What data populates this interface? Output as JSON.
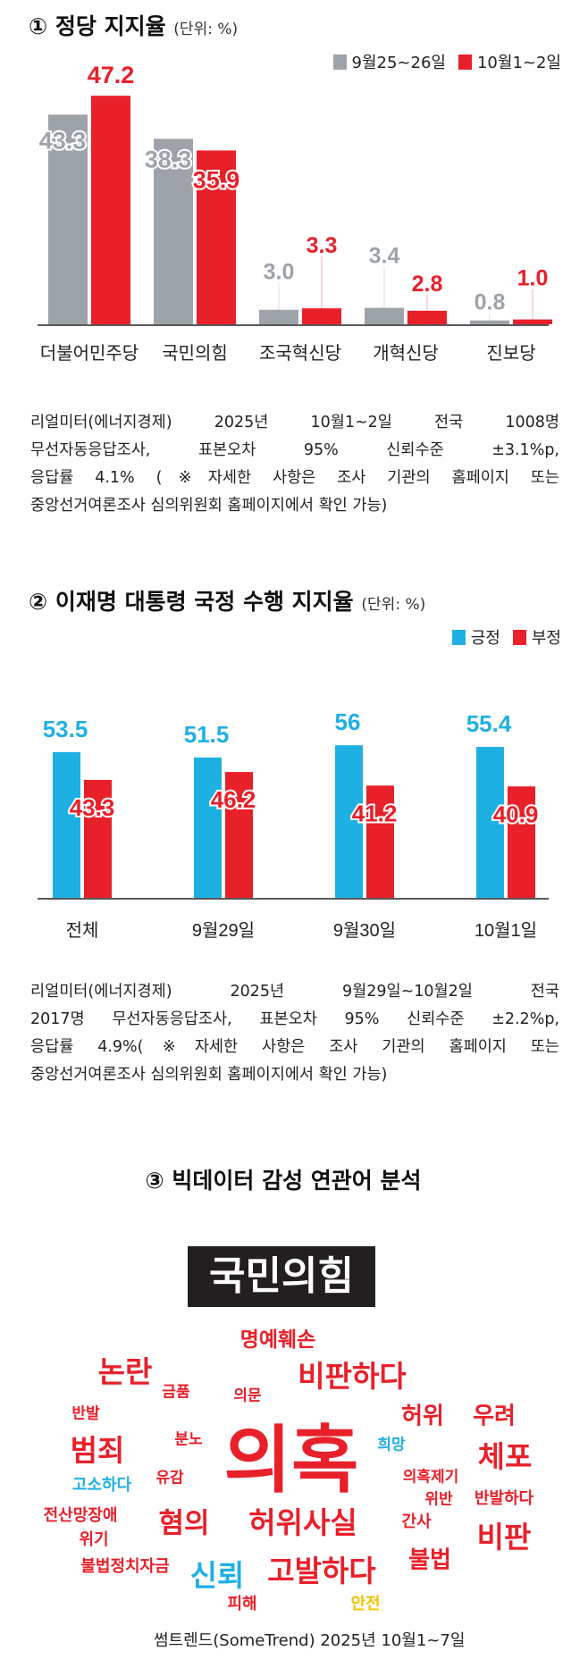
{
  "colors": {
    "gray": "#9ea3aa",
    "red": "#e8202a",
    "blue": "#1fb0e3",
    "yellow": "#f2c200"
  },
  "chart_data": [
    {
      "type": "bar",
      "title": "① 정당 지지율",
      "unit": "(단위: %)",
      "categories": [
        "더불어민주당",
        "국민의힘",
        "조국혁신당",
        "개혁신당",
        "진보당"
      ],
      "series": [
        {
          "name": "9월25~26일",
          "values": [
            43.3,
            38.3,
            3.0,
            3.4,
            0.8
          ],
          "labels": [
            "43.3",
            "38.3",
            "3.0",
            "3.4",
            "0.8"
          ]
        },
        {
          "name": "10월1~2일",
          "values": [
            47.2,
            35.9,
            3.3,
            2.8,
            1.0
          ],
          "labels": [
            "47.2",
            "35.9",
            "3.3",
            "2.8",
            "1.0"
          ]
        }
      ],
      "ylim": [
        0,
        50
      ],
      "legend": "top-right",
      "grid": false
    },
    {
      "type": "bar",
      "title": "② 이재명 대통령 국정 수행 지지율",
      "unit": "(단위: %)",
      "categories": [
        "전체",
        "9월29일",
        "9월30일",
        "10월1일"
      ],
      "series": [
        {
          "name": "긍정",
          "values": [
            53.5,
            51.5,
            56,
            55.4
          ],
          "labels": [
            "53.5",
            "51.5",
            "56",
            "55.4"
          ]
        },
        {
          "name": "부정",
          "values": [
            43.3,
            46.2,
            41.2,
            40.9
          ],
          "labels": [
            "43.3",
            "46.2",
            "41.2",
            "40.9"
          ]
        }
      ],
      "ylim": [
        0,
        60
      ],
      "legend": "top-right",
      "grid": false
    }
  ],
  "note1": [
    "리얼미터(에너지경제) 2025년 10월1~2일 전국 1008명",
    "무선자동응답조사, 표본오차 95% 신뢰수준 ±3.1%p,",
    "응답률 4.1% (※자세한 사항은 조사 기관의 홈페이지 또는",
    "중앙선거여론조사 심의위원회 홈페이지에서 확인 가능)"
  ],
  "note2": [
    "리얼미터(에너지경제) 2025년 9월29일~10월2일 전국",
    "2017명 무선자동응답조사, 표본오차 95% 신뢰수준 ±2.2%p,",
    "응답률 4.9%(※자세한 사항은 조사 기관의 홈페이지 또는",
    "중앙선거여론조사 심의위원회 홈페이지에서 확인 가능)"
  ],
  "cloud": {
    "title": "③ 빅데이터 감성 연관어 분석",
    "subject": "국민의힘",
    "words": [
      "명예훼손",
      "논란",
      "금품",
      "의문",
      "비판하다",
      "반발",
      "허위",
      "우려",
      "분노",
      "의혹",
      "희망",
      "범죄",
      "체포",
      "유감",
      "의혹제기",
      "고소하다",
      "위반",
      "반발하다",
      "전산망장애",
      "위기",
      "혐의",
      "허위사실",
      "간사",
      "비판",
      "불법",
      "불법정치자금",
      "신뢰",
      "고발하다",
      "피해",
      "안전"
    ],
    "source": "썸트렌드(SomeTrend) 2025년 10월1~7일"
  }
}
